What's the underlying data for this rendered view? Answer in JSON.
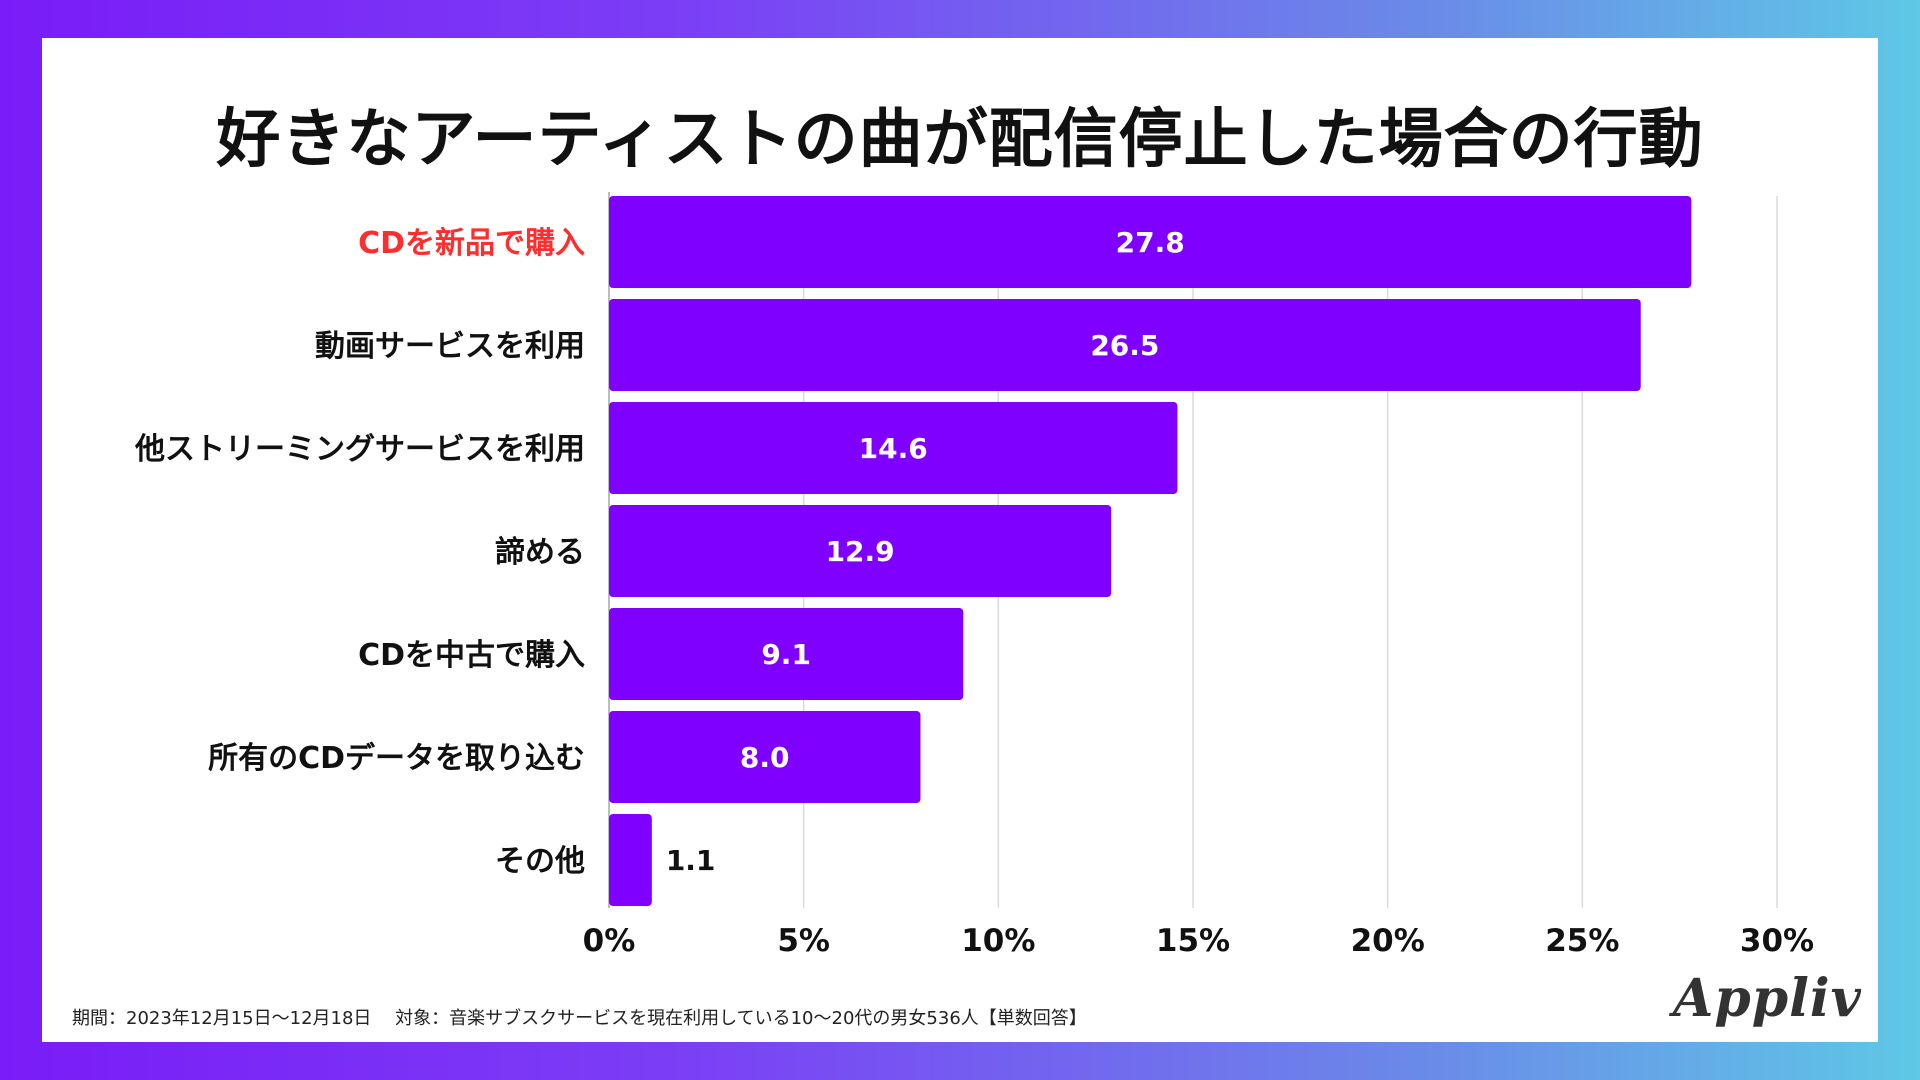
{
  "chart_data": {
    "type": "bar",
    "orientation": "horizontal",
    "title": "好きなアーティストの曲が配信停止した場合の行動",
    "categories": [
      "CDを新品で購入",
      "動画サービスを利用",
      "他ストリーミングサービスを利用",
      "諦める",
      "CDを中古で購入",
      "所有のCDデータを取り込む",
      "その他"
    ],
    "values": [
      27.8,
      26.5,
      14.6,
      12.9,
      9.1,
      8.0,
      1.1
    ],
    "value_labels": [
      "27.8",
      "26.5",
      "14.6",
      "12.9",
      "9.1",
      "8.0",
      "1.1"
    ],
    "highlight_index": 0,
    "xlim": [
      0,
      30
    ],
    "xticks": [
      0,
      5,
      10,
      15,
      20,
      25,
      30
    ],
    "xtick_labels": [
      "0%",
      "5%",
      "10%",
      "15%",
      "20%",
      "25%",
      "30%"
    ],
    "xlabel": "",
    "ylabel": "",
    "grid": "vertical"
  },
  "colors": {
    "bar": "#8000ff",
    "highlight_label": "#ff2e2e",
    "label": "#111111",
    "value_inside": "#ffffff",
    "value_outside": "#111111",
    "grid": "#d9d9d9"
  },
  "footnote": "期間：2023年12月15日〜12月18日　 対象：音楽サブスクサービスを現在利用している10〜20代の男女536人【単数回答】",
  "logo": "Appliv"
}
